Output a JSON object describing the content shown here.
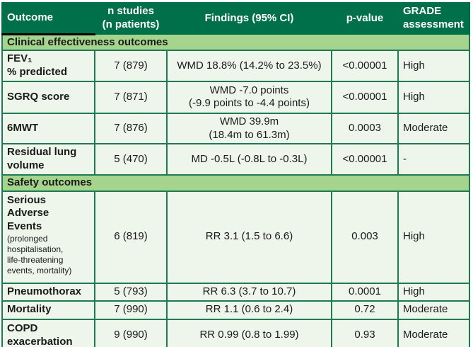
{
  "colors": {
    "header_bg": "#00704a",
    "section_bg": "#a5d48c",
    "row_bg": "#eef6ec",
    "border": "#1d7a52",
    "header_text": "#ffffff",
    "body_text": "#1a1a1a"
  },
  "table": {
    "columns": [
      {
        "label": "Outcome"
      },
      {
        "label": "n studies\n(n patients)"
      },
      {
        "label": "Findings (95% CI)"
      },
      {
        "label": "p-value"
      },
      {
        "label": "GRADE\nassessment"
      }
    ],
    "sections": {
      "clinical": "Clinical effectiveness outcomes",
      "safety": "Safety outcomes"
    },
    "rows": [
      {
        "outcome": "FEV₁\n% predicted",
        "n": "7 (879)",
        "findings": "WMD 18.8% (14.2% to 23.5%)",
        "p": "<0.00001",
        "grade": "High"
      },
      {
        "outcome": "SGRQ score",
        "n": "7 (871)",
        "findings": "WMD -7.0 points\n(-9.9 points to -4.4 points)",
        "p": "<0.00001",
        "grade": "High"
      },
      {
        "outcome": "6MWT",
        "n": "7 (876)",
        "findings": "WMD 39.9m\n(18.4m to 61.3m)",
        "p": "0.0003",
        "grade": "Moderate"
      },
      {
        "outcome": "Residual lung\nvolume",
        "n": "5 (470)",
        "findings": "MD -0.5L (-0.8L to -0.3L)",
        "p": "<0.00001",
        "grade": "-"
      },
      {
        "outcome": "Serious\nAdverse\nEvents",
        "outcome_note": "(prolonged\nhospitalisation,\nlife-threatening\nevents, mortality)",
        "n": "6 (819)",
        "findings": "RR 3.1 (1.5 to 6.6)",
        "p": "0.003",
        "grade": "High"
      },
      {
        "outcome": "Pneumothorax",
        "n": "5 (793)",
        "findings": "RR 6.3 (3.7 to 10.7)",
        "p": "0.0001",
        "grade": "High"
      },
      {
        "outcome": "Mortality",
        "n": "7 (990)",
        "findings": "RR 1.1 (0.6 to 2.4)",
        "p": "0.72",
        "grade": "Moderate"
      },
      {
        "outcome": "COPD\nexacerbation",
        "n": "9 (990)",
        "findings": "RR 0.99 (0.8 to 1.99)",
        "p": "0.93",
        "grade": "Moderate"
      }
    ]
  }
}
